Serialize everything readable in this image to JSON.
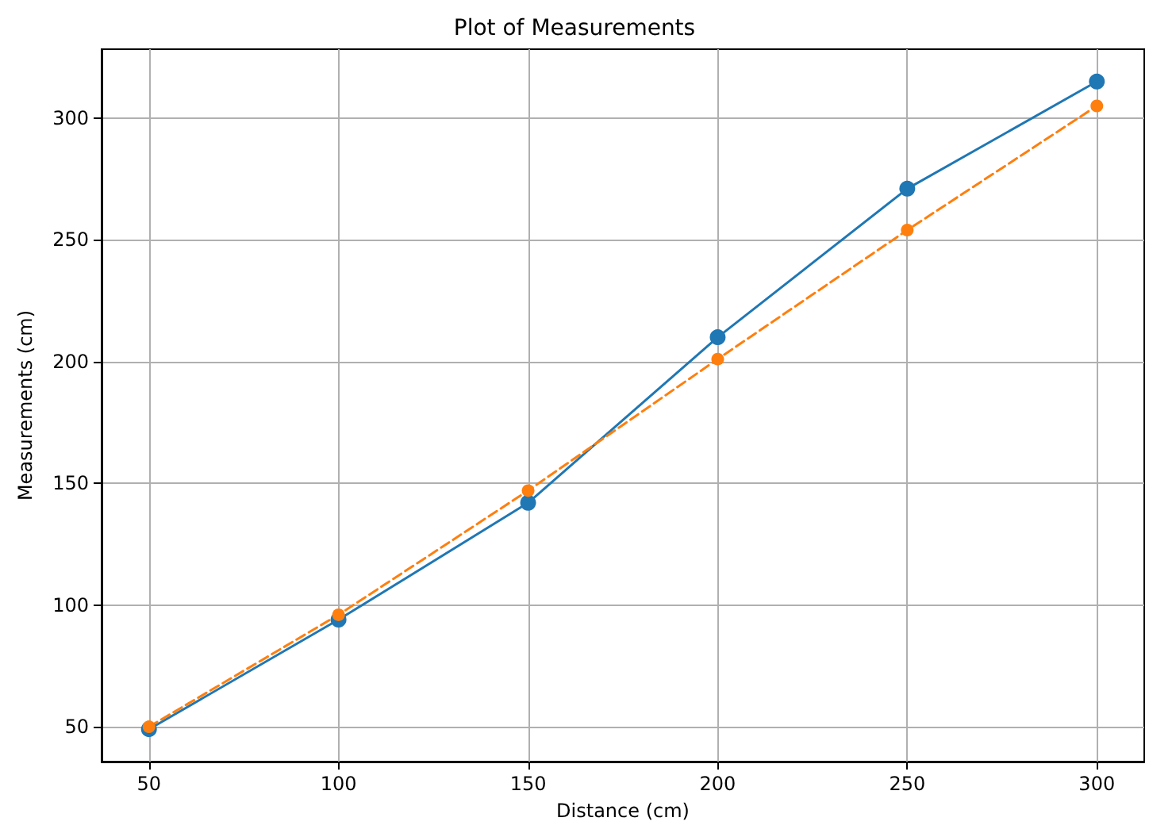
{
  "chart_data": {
    "type": "line",
    "title": "Plot of Measurements",
    "xlabel": "Distance (cm)",
    "ylabel": "Measurements (cm)",
    "x": [
      50,
      100,
      150,
      200,
      250,
      300
    ],
    "series": [
      {
        "color": "#1f77b4",
        "values": [
          49,
          94,
          142,
          210,
          271,
          315
        ],
        "line_style": "solid"
      },
      {
        "color": "#ff7f0e",
        "values": [
          50,
          96,
          147,
          201,
          254,
          305
        ],
        "line_style": "dashed"
      }
    ],
    "xlim": [
      37.5,
      312.5
    ],
    "xticks": [
      50,
      100,
      150,
      200,
      250,
      300
    ],
    "ylim": [
      35.7,
      328.3
    ],
    "yticks": [
      50,
      100,
      150,
      200,
      250,
      300
    ],
    "grid": true,
    "marker": "circle"
  }
}
